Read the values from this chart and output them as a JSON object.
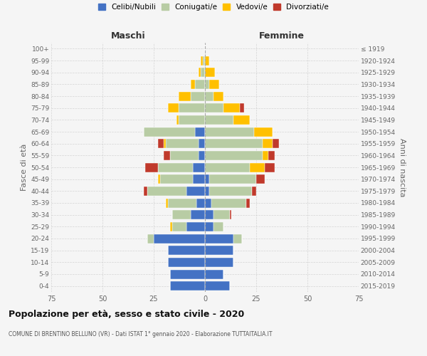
{
  "age_groups_bottom_to_top": [
    "0-4",
    "5-9",
    "10-14",
    "15-19",
    "20-24",
    "25-29",
    "30-34",
    "35-39",
    "40-44",
    "45-49",
    "50-54",
    "55-59",
    "60-64",
    "65-69",
    "70-74",
    "75-79",
    "80-84",
    "85-89",
    "90-94",
    "95-99",
    "100+"
  ],
  "birth_years_bottom_to_top": [
    "2015-2019",
    "2010-2014",
    "2005-2009",
    "2000-2004",
    "1995-1999",
    "1990-1994",
    "1985-1989",
    "1980-1984",
    "1975-1979",
    "1970-1974",
    "1965-1969",
    "1960-1964",
    "1955-1959",
    "1950-1954",
    "1945-1949",
    "1940-1944",
    "1935-1939",
    "1930-1934",
    "1925-1929",
    "1920-1924",
    "≤ 1919"
  ],
  "maschi": {
    "celibi": [
      17,
      17,
      18,
      18,
      25,
      9,
      7,
      4,
      9,
      6,
      6,
      3,
      3,
      5,
      0,
      0,
      0,
      0,
      0,
      0,
      0
    ],
    "coniugati": [
      0,
      0,
      0,
      0,
      3,
      7,
      9,
      14,
      19,
      16,
      17,
      14,
      16,
      25,
      13,
      13,
      7,
      5,
      2,
      1,
      0
    ],
    "vedovi": [
      0,
      0,
      0,
      0,
      0,
      1,
      0,
      1,
      0,
      1,
      0,
      0,
      1,
      0,
      1,
      5,
      6,
      2,
      1,
      1,
      0
    ],
    "divorziati": [
      0,
      0,
      0,
      0,
      0,
      0,
      0,
      0,
      2,
      0,
      6,
      3,
      3,
      0,
      0,
      0,
      0,
      0,
      0,
      0,
      0
    ]
  },
  "femmine": {
    "nubili": [
      12,
      9,
      14,
      14,
      14,
      4,
      4,
      3,
      2,
      2,
      0,
      0,
      0,
      0,
      0,
      0,
      0,
      0,
      0,
      0,
      0
    ],
    "coniugate": [
      0,
      0,
      0,
      0,
      4,
      5,
      8,
      17,
      21,
      23,
      22,
      28,
      28,
      24,
      14,
      9,
      4,
      2,
      0,
      0,
      0
    ],
    "vedove": [
      0,
      0,
      0,
      0,
      0,
      0,
      0,
      0,
      0,
      0,
      7,
      3,
      5,
      9,
      8,
      8,
      5,
      5,
      5,
      2,
      0
    ],
    "divorziate": [
      0,
      0,
      0,
      0,
      0,
      0,
      1,
      2,
      2,
      4,
      5,
      3,
      3,
      0,
      0,
      2,
      0,
      0,
      0,
      0,
      0
    ]
  },
  "colors": {
    "celibi": "#4472c4",
    "coniugati": "#b8cca4",
    "vedovi": "#ffc000",
    "divorziati": "#c0392b"
  },
  "xlim": 75,
  "title": "Popolazione per età, sesso e stato civile - 2020",
  "subtitle": "COMUNE DI BRENTINO BELLUNO (VR) - Dati ISTAT 1° gennaio 2020 - Elaborazione TUTTAITALIA.IT",
  "ylabel_left": "Fasce di età",
  "ylabel_right": "Anni di nascita",
  "bg_color": "#f5f5f5",
  "grid_color": "#cccccc",
  "legend_labels": [
    "Celibi/Nubili",
    "Coniugati/e",
    "Vedovi/e",
    "Divorziati/e"
  ]
}
